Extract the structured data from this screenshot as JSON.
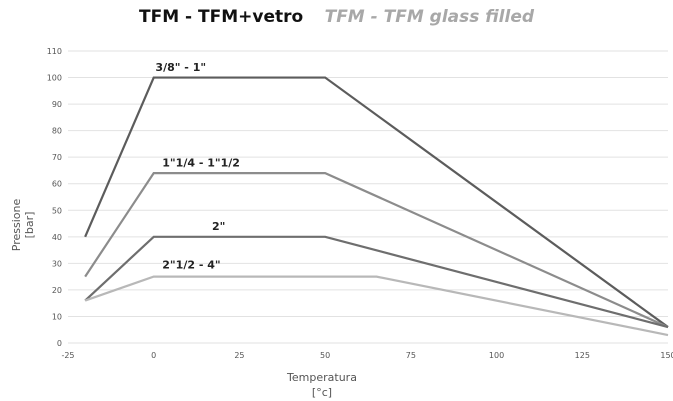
{
  "header": {
    "title": "TFM - TFM+vetro",
    "subtitle": "TFM - TFM glass filled"
  },
  "chart_data": {
    "type": "line",
    "xlabel": "Temperatura",
    "xunit": "[°c]",
    "ylabel": "Pressione",
    "yunit": "[bar]",
    "xlim": [
      -25,
      150
    ],
    "ylim": [
      0,
      110
    ],
    "xticks": [
      -25,
      0,
      25,
      50,
      75,
      100,
      125,
      150
    ],
    "xtick_labels": [
      "-25",
      "0",
      "25",
      "50",
      "75",
      "100",
      "125",
      "150"
    ],
    "yticks": [
      0,
      10,
      20,
      30,
      40,
      50,
      60,
      70,
      80,
      90,
      100,
      110
    ],
    "ytick_labels": [
      "0",
      "10",
      "20",
      "30",
      "40",
      "50",
      "60",
      "70",
      "80",
      "90",
      "100",
      "110"
    ],
    "grid": true,
    "series": [
      {
        "name": "3/8\" - 1\"",
        "color": "#5c5c5c",
        "x": [
          -20,
          0,
          50,
          150
        ],
        "y": [
          40,
          100,
          100,
          6
        ]
      },
      {
        "name": "1\"1/4 - 1\"1/2",
        "color": "#8c8c8c",
        "x": [
          -20,
          0,
          50,
          150
        ],
        "y": [
          25,
          64,
          64,
          6
        ]
      },
      {
        "name": "2\"",
        "color": "#6e6e6e",
        "x": [
          -20,
          0,
          50,
          150
        ],
        "y": [
          16,
          40,
          40,
          6
        ]
      },
      {
        "name": "2\"1/2 - 4\"",
        "color": "#b8b8b8",
        "x": [
          -20,
          0,
          65,
          150
        ],
        "y": [
          16,
          25,
          25,
          3
        ]
      }
    ]
  }
}
